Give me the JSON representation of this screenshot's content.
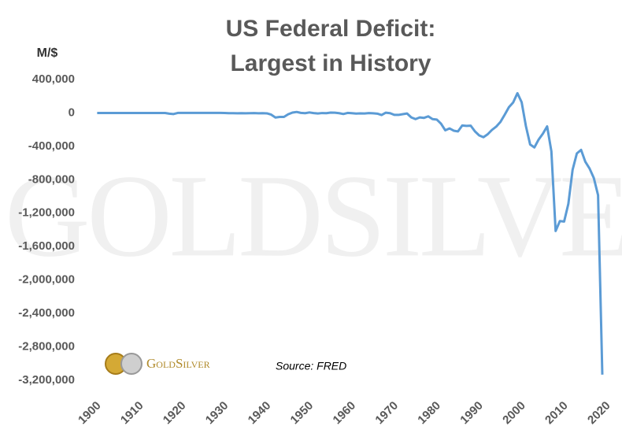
{
  "chart_data": {
    "type": "line",
    "title": [
      "US Federal Deficit:",
      "Largest in History"
    ],
    "y_label": "M/$",
    "source": "Source: FRED",
    "logo_text": "GoldSilver",
    "x": [
      1901,
      1902,
      1903,
      1904,
      1905,
      1906,
      1907,
      1908,
      1909,
      1910,
      1911,
      1912,
      1913,
      1914,
      1915,
      1916,
      1917,
      1918,
      1919,
      1920,
      1921,
      1922,
      1923,
      1924,
      1925,
      1926,
      1927,
      1928,
      1929,
      1930,
      1931,
      1932,
      1933,
      1934,
      1935,
      1936,
      1937,
      1938,
      1939,
      1940,
      1941,
      1942,
      1943,
      1944,
      1945,
      1946,
      1947,
      1948,
      1949,
      1950,
      1951,
      1952,
      1953,
      1954,
      1955,
      1956,
      1957,
      1958,
      1959,
      1960,
      1961,
      1962,
      1963,
      1964,
      1965,
      1966,
      1967,
      1968,
      1969,
      1970,
      1971,
      1972,
      1973,
      1974,
      1975,
      1976,
      1977,
      1978,
      1979,
      1980,
      1981,
      1982,
      1983,
      1984,
      1985,
      1986,
      1987,
      1988,
      1989,
      1990,
      1991,
      1992,
      1993,
      1994,
      1995,
      1996,
      1997,
      1998,
      1999,
      2000,
      2001,
      2002,
      2003,
      2004,
      2005,
      2006,
      2007,
      2008,
      2009,
      2010,
      2011,
      2012,
      2013,
      2014,
      2015,
      2016,
      2017,
      2018,
      2019,
      2020
    ],
    "series": [
      {
        "name": "Federal Deficit",
        "color": "#5b9bd5",
        "values": [
          63,
          77,
          45,
          -43,
          -23,
          25,
          87,
          -57,
          -89,
          -18,
          11,
          3,
          0,
          0,
          -63,
          48,
          -853,
          -9032,
          -13363,
          291,
          509,
          736,
          713,
          963,
          717,
          865,
          1155,
          939,
          734,
          738,
          -462,
          -2735,
          -2602,
          -3630,
          -2791,
          -4425,
          -2777,
          -1177,
          -3862,
          -2920,
          -4941,
          -20503,
          -54554,
          -47557,
          -47553,
          -15936,
          4018,
          11796,
          580,
          -3119,
          6102,
          -1519,
          -6493,
          -1154,
          -2993,
          3947,
          3412,
          -2769,
          -12849,
          301,
          -3335,
          -7146,
          -4756,
          -5915,
          -1411,
          -3698,
          -8643,
          -25161,
          3242,
          -2842,
          -23033,
          -23373,
          -14908,
          -6135,
          -53242,
          -73732,
          -53659,
          -59185,
          -40726,
          -73830,
          -78968,
          -127977,
          -207802,
          -185367,
          -212308,
          -221227,
          -149730,
          -155178,
          -152639,
          -221036,
          -269238,
          -290321,
          -255051,
          -203186,
          -163952,
          -107431,
          -21884,
          69270,
          125610,
          236241,
          128236,
          -157758,
          -377585,
          -412727,
          -318346,
          -248181,
          -160701,
          -458553,
          -1412688,
          -1294373,
          -1299595,
          -1087024,
          -679775,
          -484602,
          -441960,
          -584651,
          -665446,
          -779137,
          -984388,
          -3132460
        ]
      }
    ],
    "xlim": [
      1900,
      2020
    ],
    "xticks": [
      1900,
      1910,
      1920,
      1930,
      1940,
      1950,
      1960,
      1970,
      1980,
      1990,
      2000,
      2010,
      2020
    ],
    "ylim": [
      -3200000,
      400000
    ],
    "yticks": [
      {
        "value": 400000,
        "label": "400,000"
      },
      0,
      {
        "value": -400000,
        "label": "-400,000"
      },
      {
        "value": -800000,
        "label": "-800,000"
      },
      {
        "value": -1200000,
        "label": "-1,200,000"
      },
      {
        "value": -1600000,
        "label": "-1,600,000"
      },
      {
        "value": -2000000,
        "label": "-2,000,000"
      },
      {
        "value": -2400000,
        "label": "-2,400,000"
      },
      {
        "value": -2800000,
        "label": "-2,800,000"
      },
      {
        "value": -3200000,
        "label": "-3,200,000"
      }
    ],
    "grid": false
  }
}
